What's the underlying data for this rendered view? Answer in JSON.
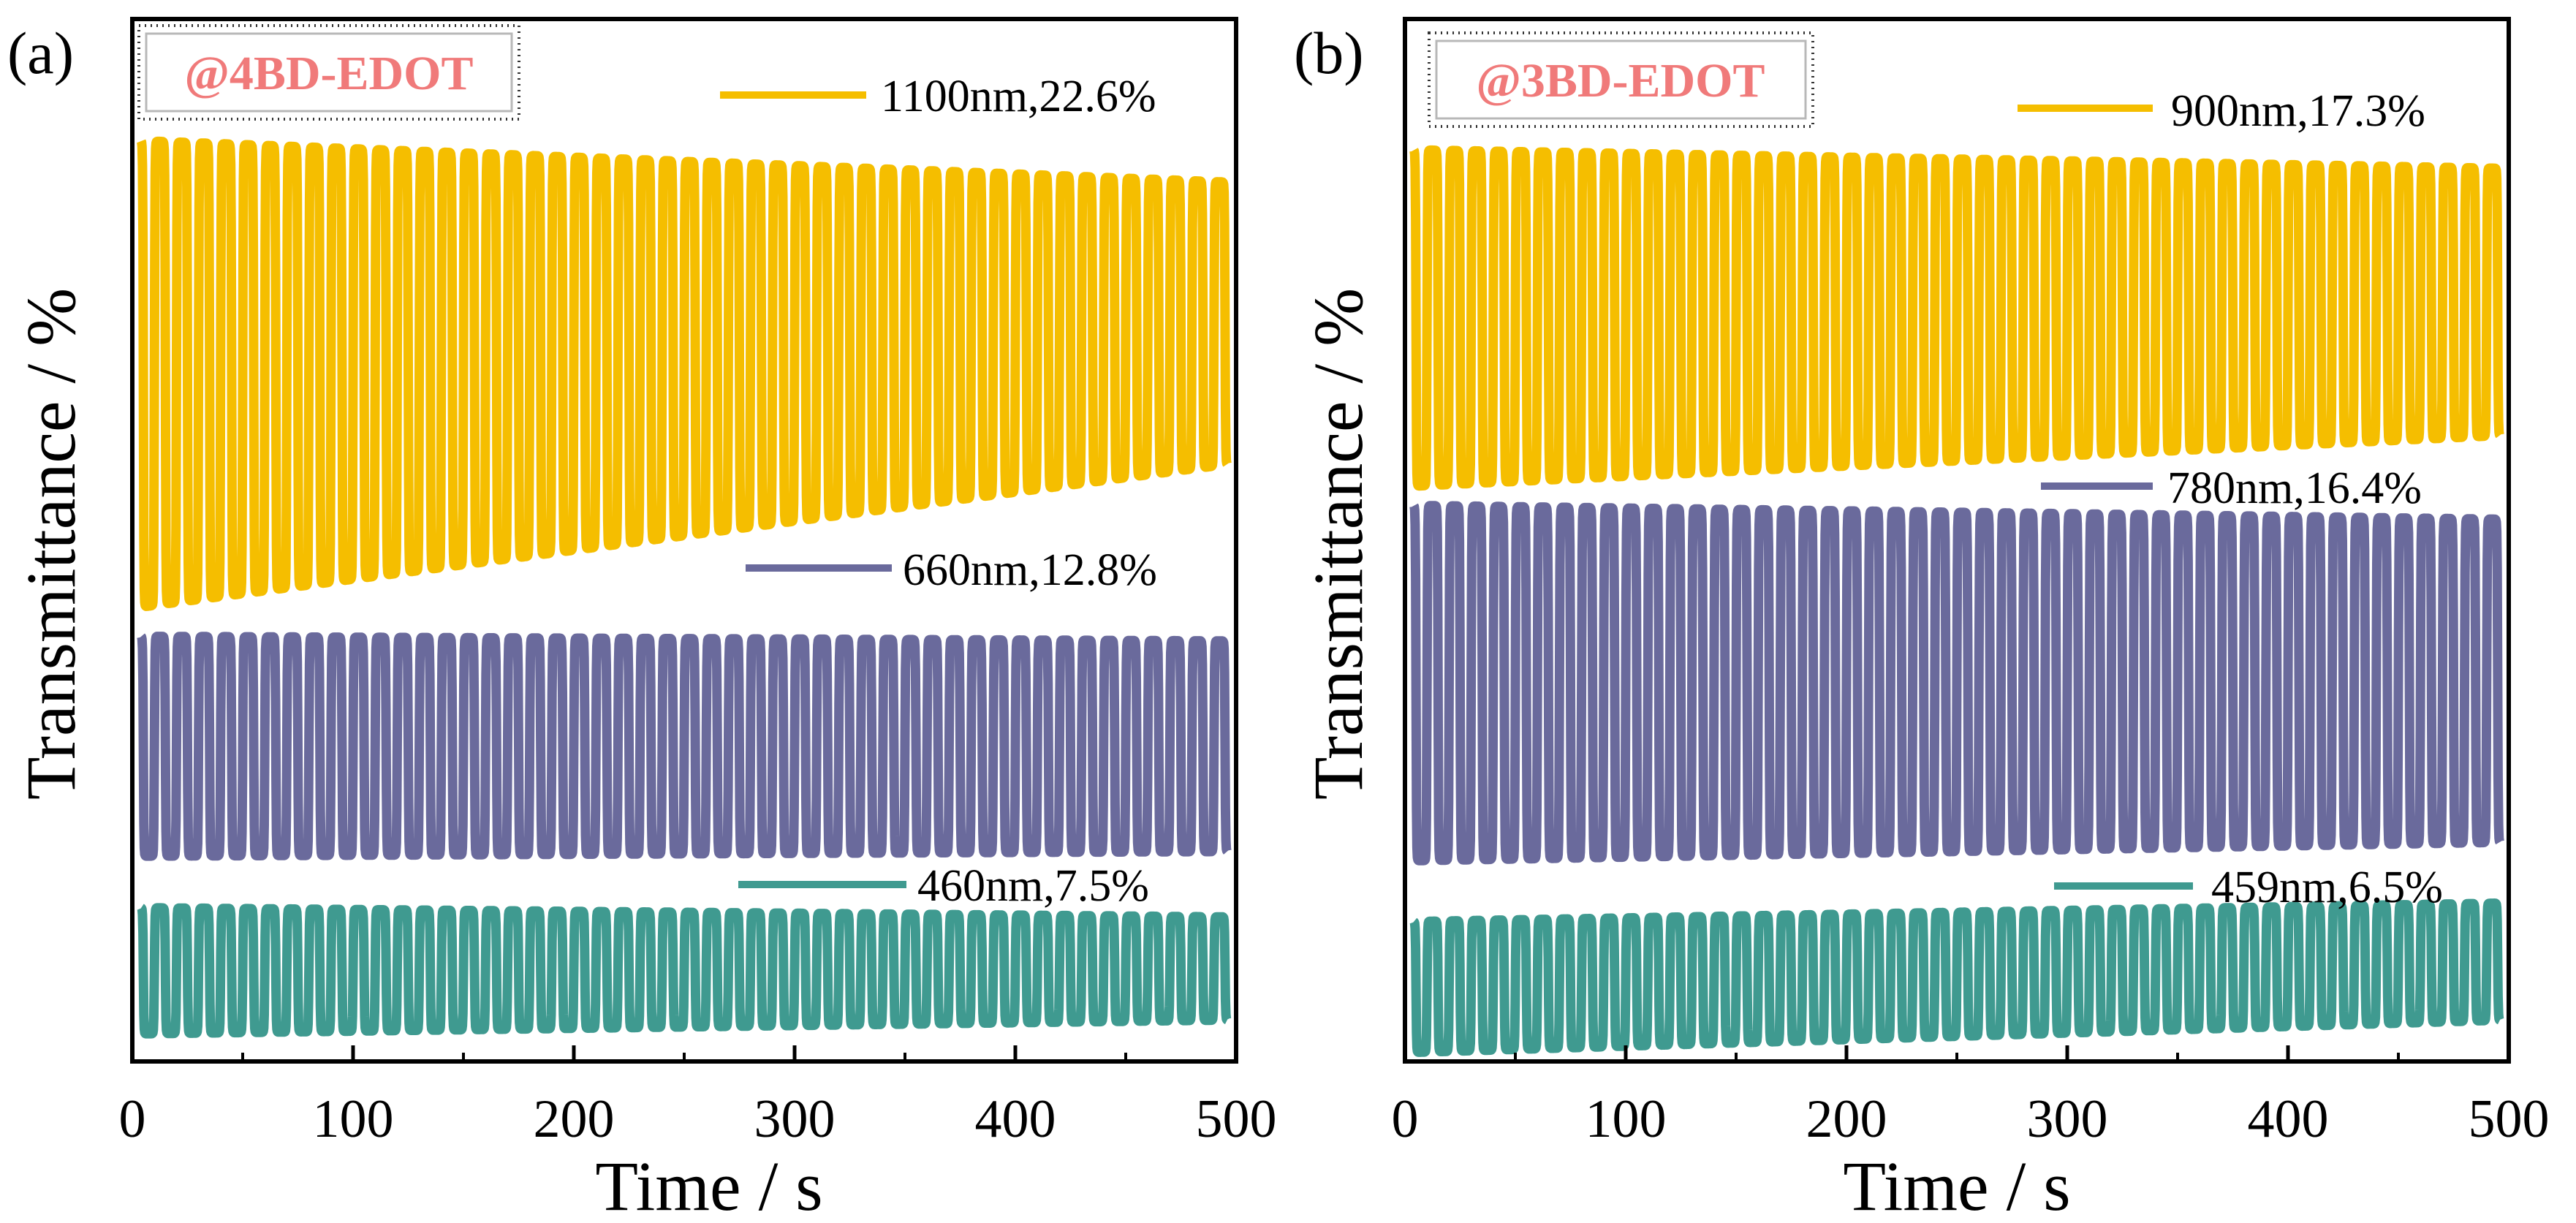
{
  "chart_data": [
    {
      "type": "line",
      "panel_label": "(a)",
      "film_label": "@4BD-EDOT",
      "xlabel": "Time / s",
      "ylabel": "Transmittance / %",
      "xlim": [
        0,
        500
      ],
      "x_ticks": [
        "0",
        "100",
        "200",
        "300",
        "400",
        "500"
      ],
      "y_ticks_shown": false,
      "grid": false,
      "period_s": 10,
      "legend_position": "inline-right",
      "series": [
        {
          "name": "1100nm,22.6%",
          "wavelength_nm": 1100,
          "contrast_percent": 22.6,
          "color": "#F5BE00",
          "upper_start": 0.975,
          "upper_end": 0.93,
          "lower_start": 0.475,
          "lower_end": 0.63
        },
        {
          "name": "660nm,12.8%",
          "wavelength_nm": 660,
          "contrast_percent": 12.8,
          "color": "#6A6A9C",
          "upper_start": 0.445,
          "upper_end": 0.44,
          "lower_start": 0.21,
          "lower_end": 0.215
        },
        {
          "name": "460nm,7.5%",
          "wavelength_nm": 460,
          "contrast_percent": 7.5,
          "color": "#3F9A90",
          "upper_start": 0.155,
          "upper_end": 0.145,
          "lower_start": 0.02,
          "lower_end": 0.035
        }
      ]
    },
    {
      "type": "line",
      "panel_label": "(b)",
      "film_label": "@3BD-EDOT",
      "xlabel": "Time / s",
      "ylabel": "Transmittance / %",
      "xlim": [
        0,
        500
      ],
      "x_ticks": [
        "0",
        "100",
        "200",
        "300",
        "400",
        "500"
      ],
      "y_ticks_shown": false,
      "grid": false,
      "period_s": 10,
      "legend_position": "inline-right",
      "series": [
        {
          "name": "900nm,17.3%",
          "wavelength_nm": 900,
          "contrast_percent": 17.3,
          "color": "#F5BE00",
          "upper_start": 0.965,
          "upper_end": 0.945,
          "lower_start": 0.605,
          "lower_end": 0.66
        },
        {
          "name": "780nm,16.4%",
          "wavelength_nm": 780,
          "contrast_percent": 16.4,
          "color": "#6A6A9C",
          "upper_start": 0.585,
          "upper_end": 0.57,
          "lower_start": 0.205,
          "lower_end": 0.225
        },
        {
          "name": "459nm,6.5%",
          "wavelength_nm": 459,
          "contrast_percent": 6.5,
          "color": "#3F9A90",
          "upper_start": 0.14,
          "upper_end": 0.16,
          "lower_start": 0.0,
          "lower_end": 0.035
        }
      ]
    }
  ]
}
